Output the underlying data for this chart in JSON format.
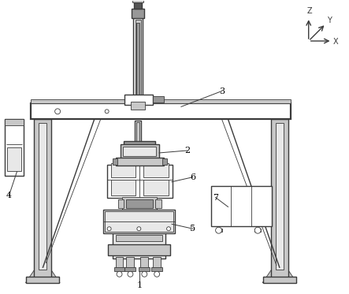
{
  "bg_color": "#ffffff",
  "line_color": "#3a3a3a",
  "light_gray": "#c8c8c8",
  "mid_gray": "#989898",
  "dark_gray": "#555555",
  "very_light": "#e8e8e8",
  "figsize": [
    4.43,
    3.73
  ],
  "dpi": 100,
  "xlim": [
    0,
    4.43
  ],
  "ylim": [
    0,
    3.73
  ]
}
